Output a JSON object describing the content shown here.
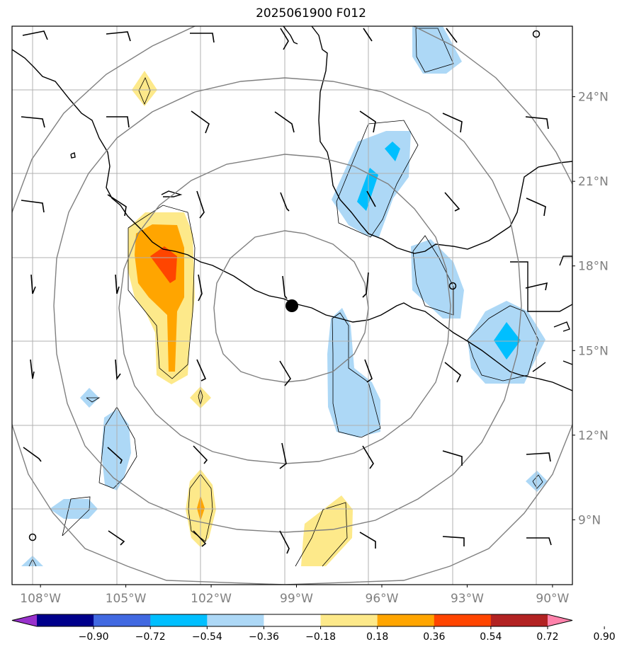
{
  "title": "2025061900 F012",
  "map": {
    "lon_range": [
      -109,
      -89.3
    ],
    "lat_range": [
      6.7,
      26.5
    ],
    "lon_ticks": [
      -108,
      -105,
      -102,
      -99,
      -96,
      -93,
      -90
    ],
    "lon_labels": [
      "108°W",
      "105°W",
      "102°W",
      "99°W",
      "96°W",
      "93°W",
      "90°W"
    ],
    "lat_ticks": [
      9,
      12,
      15,
      18,
      21,
      24
    ],
    "lat_labels": [
      "9°N",
      "12°N",
      "15°N",
      "18°N",
      "21°N",
      "24°N"
    ],
    "gridlines": true,
    "label_color": "#808080",
    "storm_center": {
      "lon": -98.75,
      "lat": 16.25,
      "marker": "filled-circle"
    },
    "range_rings": 5,
    "wind_barbs": true
  },
  "colorbar": {
    "levels": [
      "−0.90",
      "−0.72",
      "−0.54",
      "−0.36",
      "−0.18",
      "0.18",
      "0.36",
      "0.54",
      "0.72",
      "0.90"
    ],
    "colors": [
      "#9932cc",
      "#00008b",
      "#4169e1",
      "#00bfff",
      "#add8f6",
      "#ffffff",
      "#fde98a",
      "#ffa500",
      "#ff4500",
      "#b22222",
      "#ff82ab"
    ],
    "extend": "both"
  }
}
